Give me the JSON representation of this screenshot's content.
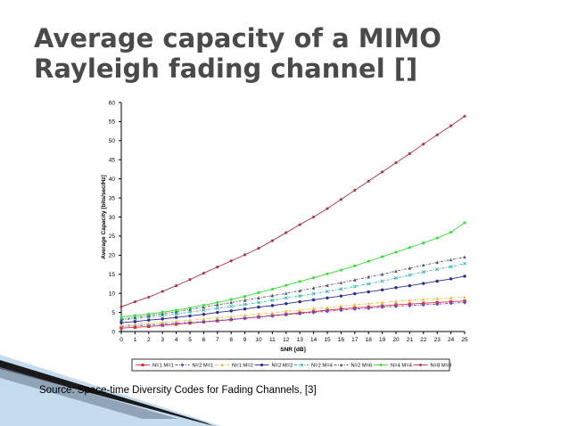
{
  "slide": {
    "title": "Average capacity of a MIMO Rayleigh fading channel []",
    "source": "Source: Space-time Diversity Codes for Fading Channels, [3]"
  },
  "colors": {
    "title": "#4a4a4a",
    "axes": "#000000",
    "accent_banner": "#b7d3ea"
  },
  "chart_data": {
    "type": "line",
    "title": "",
    "xlabel": "SNR [dB]",
    "ylabel": "Average Capacity [bits/sec/Hz]",
    "xlim": [
      0,
      25
    ],
    "ylim": [
      0,
      60
    ],
    "xticks": [
      0,
      1,
      2,
      3,
      4,
      5,
      6,
      7,
      8,
      9,
      10,
      11,
      12,
      13,
      14,
      15,
      16,
      17,
      18,
      19,
      20,
      21,
      22,
      23,
      24,
      25
    ],
    "yticks": [
      0,
      5,
      10,
      15,
      20,
      25,
      30,
      35,
      40,
      45,
      50,
      55,
      60
    ],
    "grid": false,
    "legend_position": "bottom",
    "x": [
      0,
      1,
      2,
      3,
      4,
      5,
      6,
      7,
      8,
      9,
      10,
      11,
      12,
      13,
      14,
      15,
      16,
      17,
      18,
      19,
      20,
      21,
      22,
      23,
      24,
      25
    ],
    "series": [
      {
        "name": "N=1 M=1",
        "color": "#e0303a",
        "marker": "square",
        "dash": "solid",
        "values": [
          0.9,
          1.1,
          1.3,
          1.6,
          1.9,
          2.2,
          2.5,
          2.8,
          3.1,
          3.5,
          3.8,
          4.2,
          4.5,
          4.9,
          5.2,
          5.6,
          5.9,
          6.2,
          6.4,
          6.7,
          7.0,
          7.2,
          7.4,
          7.6,
          7.8,
          8.0
        ]
      },
      {
        "name": "N=2 M=1",
        "color": "#6a4bc4",
        "marker": "diamond",
        "dash": "dashdot",
        "values": [
          1.3,
          1.5,
          1.7,
          1.9,
          2.2,
          2.4,
          2.6,
          2.9,
          3.2,
          3.5,
          3.8,
          4.1,
          4.4,
          4.7,
          5.0,
          5.3,
          5.6,
          5.9,
          6.1,
          6.4,
          6.6,
          6.8,
          7.0,
          7.2,
          7.4,
          7.6
        ]
      },
      {
        "name": "N=1 M=2",
        "color": "#f0b840",
        "marker": "triangle",
        "dash": "dashdot",
        "values": [
          1.6,
          1.9,
          2.1,
          2.4,
          2.7,
          3.0,
          3.3,
          3.6,
          3.9,
          4.2,
          4.6,
          4.9,
          5.3,
          5.6,
          6.0,
          6.3,
          6.7,
          7.0,
          7.3,
          7.6,
          7.9,
          8.2,
          8.4,
          8.6,
          8.8,
          9.0
        ]
      },
      {
        "name": "N=2 M=2",
        "color": "#2a2a90",
        "marker": "circle",
        "dash": "solid",
        "values": [
          2.3,
          2.6,
          3.0,
          3.3,
          3.7,
          4.1,
          4.5,
          5.0,
          5.4,
          5.9,
          6.4,
          6.8,
          7.3,
          7.8,
          8.3,
          8.8,
          9.3,
          9.9,
          10.4,
          10.9,
          11.5,
          12.0,
          12.6,
          13.2,
          13.8,
          14.5
        ]
      },
      {
        "name": "N=2 M=4",
        "color": "#30b4b4",
        "marker": "x",
        "dash": "dashdot",
        "values": [
          3.0,
          3.4,
          3.8,
          4.2,
          4.6,
          5.1,
          5.6,
          6.1,
          6.6,
          7.1,
          7.6,
          8.2,
          8.8,
          9.3,
          9.9,
          10.5,
          11.1,
          11.8,
          12.5,
          13.2,
          14.0,
          14.8,
          15.6,
          16.3,
          17.0,
          17.8
        ]
      },
      {
        "name": "N=2 M=6",
        "color": "#555566",
        "marker": "triangle",
        "dash": "dashdot",
        "values": [
          3.2,
          3.7,
          4.2,
          4.7,
          5.2,
          5.8,
          6.4,
          7.0,
          7.6,
          8.2,
          8.8,
          9.4,
          10.0,
          10.7,
          11.4,
          12.1,
          12.8,
          13.5,
          14.3,
          15.0,
          15.8,
          16.6,
          17.4,
          18.1,
          18.8,
          19.5
        ]
      },
      {
        "name": "N=4 M=4",
        "color": "#33dd33",
        "marker": "star",
        "dash": "solid",
        "values": [
          3.8,
          4.2,
          4.6,
          5.1,
          5.6,
          6.2,
          6.9,
          7.6,
          8.4,
          9.2,
          10.2,
          11.1,
          12.1,
          13.1,
          14.1,
          15.1,
          16.1,
          17.2,
          18.4,
          19.6,
          20.8,
          22.0,
          23.2,
          24.5,
          26.0,
          28.5
        ]
      },
      {
        "name": "N=8 M=8",
        "color": "#aa3344",
        "marker": "star",
        "dash": "solid",
        "values": [
          6.5,
          7.8,
          9.0,
          10.5,
          12.0,
          13.6,
          15.3,
          16.9,
          18.5,
          20.1,
          21.8,
          23.8,
          25.9,
          28.0,
          30.0,
          32.2,
          34.6,
          37.0,
          39.4,
          41.8,
          44.2,
          46.6,
          49.1,
          51.5,
          53.9,
          56.4
        ]
      }
    ]
  }
}
